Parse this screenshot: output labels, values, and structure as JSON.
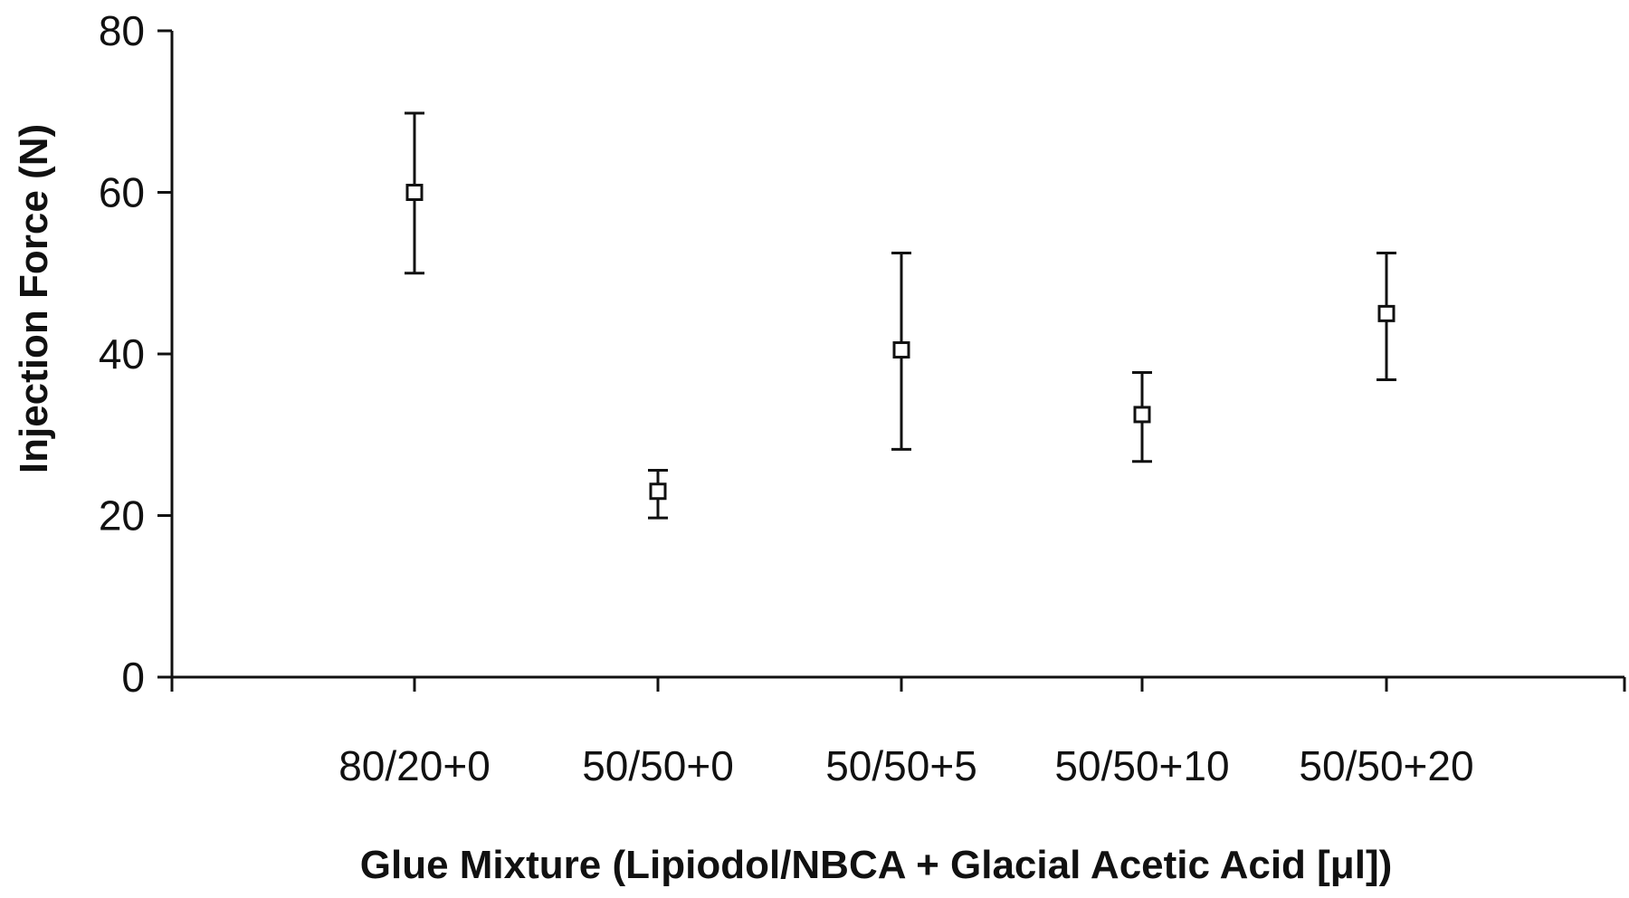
{
  "chart_data": {
    "type": "scatter",
    "title": "",
    "xlabel": "Glue Mixture (Lipiodol/NBCA + Glacial Acetic Acid [μl])",
    "ylabel": "Injection Force (N)",
    "ylim": [
      0,
      80
    ],
    "yticks": [
      "0",
      "20",
      "40",
      "60",
      "80"
    ],
    "categories": [
      "80/20+0",
      "50/50+0",
      "50/50+5",
      "50/50+10",
      "50/50+20"
    ],
    "values": [
      60,
      23,
      40.5,
      32.5,
      45
    ],
    "error_low": [
      50,
      19.7,
      28.2,
      26.7,
      36.8
    ],
    "error_high": [
      69.8,
      25.6,
      52.5,
      37.7,
      52.5
    ],
    "marker": "open-square",
    "grid": false,
    "legend": "none",
    "colors": {
      "axis": "#111111",
      "marker": "#111111"
    }
  }
}
